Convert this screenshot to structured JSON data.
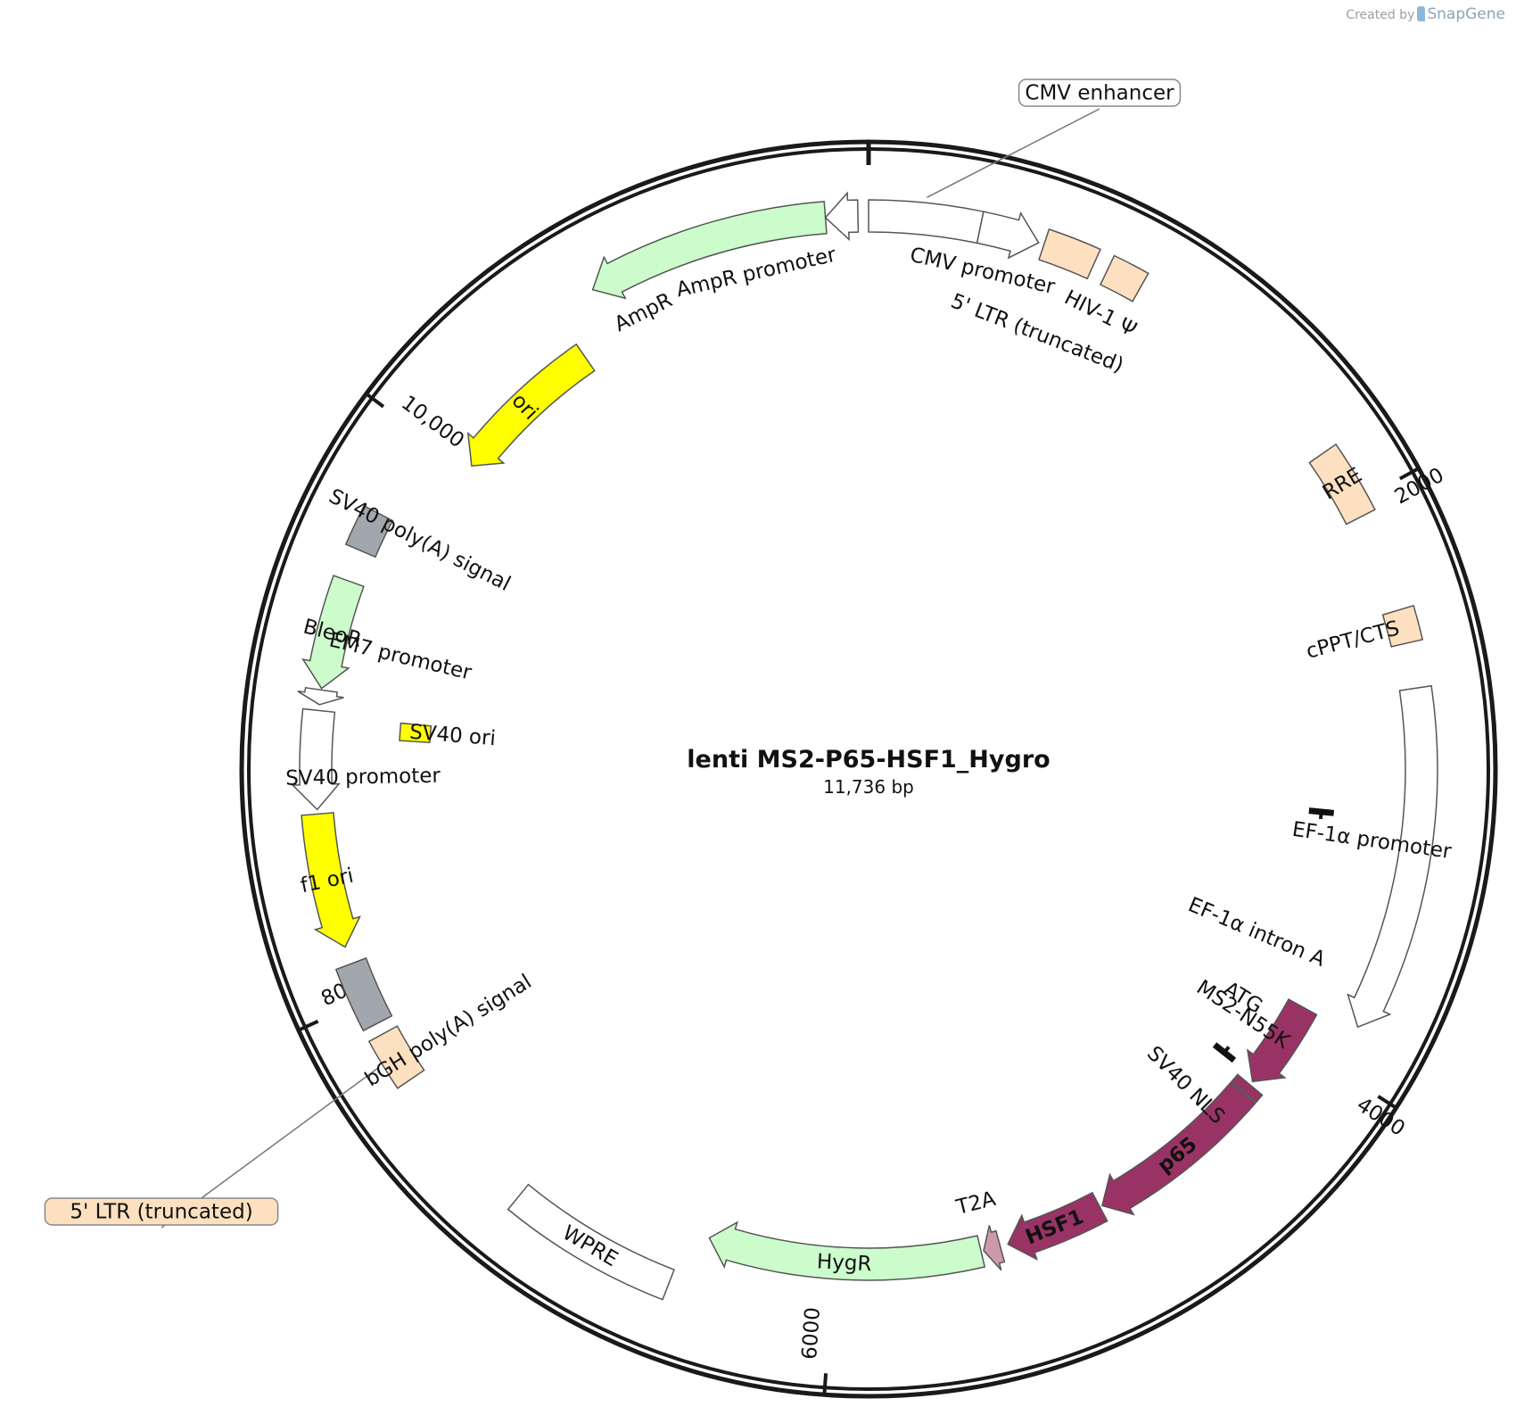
{
  "credit": {
    "prefix": "Created by",
    "brand": "SnapGene"
  },
  "plasmid": {
    "name": "lenti MS2-P65-HSF1_Hygro",
    "length_label": "11,736 bp",
    "length_bp": 11736
  },
  "ticks": [
    {
      "bp": 2000,
      "label": "2000"
    },
    {
      "bp": 4000,
      "label": "4000"
    },
    {
      "bp": 6000,
      "label": "6000"
    },
    {
      "bp": 8000,
      "label": "8000"
    },
    {
      "bp": 10000,
      "label": "10,000"
    }
  ],
  "colors": {
    "orange": "#fde0c0",
    "green": "#ccfccc",
    "yellow": "#ffff00",
    "gray": "#a2a7ad",
    "white": "#ffffff",
    "magenta": "#993366",
    "pink": "#cc99aa",
    "black": "#111111"
  },
  "features": [
    {
      "id": "cmv-enhancer",
      "label": "CMV enhancer",
      "start": 0,
      "end": 380,
      "r": 620,
      "color": "white",
      "dir": 1,
      "arrow": false,
      "label_mode": "callout",
      "label_x": 1233,
      "label_y": 104
    },
    {
      "id": "cmv-promoter",
      "label": "CMV promoter",
      "start": 380,
      "end": 584,
      "r": 620,
      "color": "white",
      "dir": 1,
      "arrow": true,
      "label_mode": "arc",
      "label_r": 572,
      "label_bp": 420
    },
    {
      "id": "ltr-5-left",
      "label": "5' LTR (truncated)",
      "start": 603,
      "end": 784,
      "r": 620,
      "color": "orange",
      "dir": 0,
      "arrow": false,
      "label_mode": "arc",
      "label_r": 523,
      "label_bp": 690
    },
    {
      "id": "hiv-psi",
      "label": "HIV-1 Ψ",
      "start": 834,
      "end": 960,
      "r": 620,
      "color": "orange",
      "dir": 0,
      "arrow": false,
      "label_mode": "arc",
      "label_r": 572,
      "label_bp": 880
    },
    {
      "id": "rre",
      "label": "RRE",
      "start": 1800,
      "end": 2050,
      "r": 620,
      "color": "orange",
      "dir": 0,
      "arrow": false,
      "label_mode": "inside"
    },
    {
      "id": "cppt",
      "label": "cPPT/CTS",
      "start": 2390,
      "end": 2505,
      "r": 620,
      "color": "orange",
      "dir": 0,
      "arrow": false,
      "label_mode": "arc",
      "label_r": 562,
      "label_bp": 2450
    },
    {
      "id": "ef1a-promoter",
      "label": "EF-1α promoter",
      "start": 2660,
      "end": 3840,
      "r": 620,
      "color": "white",
      "dir": 1,
      "arrow": true,
      "label_mode": "arc",
      "label_r": 570,
      "label_bp": 3200
    },
    {
      "id": "ms2",
      "label": "MS2-N55K",
      "start": 3870,
      "end": 4210,
      "r": 555,
      "color": "magenta",
      "dir": 1,
      "arrow": true,
      "label_mode": "arc",
      "label_r": 502,
      "label_bp": 4020
    },
    {
      "id": "sv40-nls",
      "label": "SV40 NLS",
      "start": 4225,
      "end": 4260,
      "r": 555,
      "color": "magenta",
      "dir": 0,
      "arrow": false,
      "label_mode": "arc",
      "label_r": 502,
      "label_bp": 4400
    },
    {
      "id": "p65",
      "label": "p65",
      "start": 4265,
      "end": 4950,
      "r": 555,
      "color": "magenta",
      "dir": 1,
      "arrow": true,
      "label_mode": "inside_white"
    },
    {
      "id": "hsf1",
      "label": "HSF1",
      "start": 4960,
      "end": 5335,
      "r": 555,
      "color": "magenta",
      "dir": 1,
      "arrow": true,
      "label_mode": "inside_white"
    },
    {
      "id": "t2a",
      "label": "T2A",
      "start": 5365,
      "end": 5430,
      "r": 555,
      "color": "pink",
      "dir": 1,
      "arrow": true,
      "label_mode": "arc",
      "label_r": 502,
      "label_bp": 5415
    },
    {
      "id": "hygr",
      "label": "HygR",
      "start": 5440,
      "end": 6480,
      "r": 555,
      "color": "green",
      "dir": 1,
      "arrow": true,
      "label_mode": "inside"
    },
    {
      "id": "wpre",
      "label": "WPRE",
      "start": 6560,
      "end": 7150,
      "r": 620,
      "color": "white",
      "dir": 0,
      "arrow": false,
      "label_mode": "inside"
    },
    {
      "id": "ltr-5-right",
      "label": "5' LTR (truncated)",
      "start": 7690,
      "end": 7870,
      "r": 620,
      "color": "orange",
      "dir": 0,
      "arrow": false,
      "label_mode": "callout",
      "label_x": 181,
      "label_y": 1358
    },
    {
      "id": "bgh",
      "label": "bGH poly(A) signal",
      "start": 7910,
      "end": 8130,
      "r": 620,
      "color": "gray",
      "dir": 0,
      "arrow": false,
      "label_mode": "arc",
      "label_r": 555,
      "label_bp": 7760
    },
    {
      "id": "f1-ori",
      "label": "f1 ori",
      "start": 8190,
      "end": 8650,
      "r": 620,
      "color": "yellow",
      "dir": -1,
      "arrow": true,
      "label_mode": "inside"
    },
    {
      "id": "sv40-promoter",
      "label": "SV40 promoter",
      "start": 8665,
      "end": 9000,
      "r": 620,
      "color": "white",
      "dir": -1,
      "arrow": true,
      "label_mode": "arc",
      "label_r": 567,
      "label_bp": 8770
    },
    {
      "id": "em7-promoter",
      "label": "EM7 promoter",
      "start": 9020,
      "end": 9070,
      "r": 620,
      "color": "white",
      "dir": -1,
      "arrow": true,
      "label_mode": "arc",
      "label_r": 540,
      "label_bp": 9240
    },
    {
      "id": "bleor",
      "label": "BleoR",
      "start": 9075,
      "end": 9450,
      "r": 620,
      "color": "green",
      "dir": -1,
      "arrow": true,
      "label_mode": "inside"
    },
    {
      "id": "sv40-polya",
      "label": "SV40 poly(A) signal",
      "start": 9560,
      "end": 9700,
      "r": 620,
      "color": "gray",
      "dir": 0,
      "arrow": false,
      "label_mode": "arc",
      "label_r": 565,
      "label_bp": 9680
    },
    {
      "id": "ori",
      "label": "ori",
      "start": 10020,
      "end": 10610,
      "r": 560,
      "color": "yellow",
      "dir": -1,
      "arrow": true,
      "label_mode": "inside"
    },
    {
      "id": "ampr",
      "label": "AmpR",
      "start": 10760,
      "end": 11590,
      "r": 620,
      "color": "green",
      "dir": -1,
      "arrow": true,
      "label_mode": "arc",
      "label_r": 570,
      "label_bp": 10880
    },
    {
      "id": "ampr-promoter",
      "label": "AmpR promoter",
      "start": 11590,
      "end": 11700,
      "r": 620,
      "color": "white",
      "dir": -1,
      "arrow": true,
      "label_mode": "arc",
      "label_r": 570,
      "label_bp": 11320
    }
  ],
  "inner_features": [
    {
      "id": "sv40-ori",
      "label": "SV40 ori",
      "start": 8915,
      "end": 8985,
      "r": 510,
      "color": "yellow",
      "label_r": 468,
      "label_bp": 8950
    },
    {
      "id": "ef1a-intron",
      "label": "EF-1α intron A",
      "start": 3110,
      "end": 4190,
      "r": 510,
      "color": "black",
      "label_r": 472,
      "label_bp": 3680
    },
    {
      "id": "atg",
      "label": "ATG",
      "start": 3960,
      "end": 3960,
      "r": 510,
      "color": "black",
      "label_r": 492,
      "label_bp": 3960
    }
  ]
}
